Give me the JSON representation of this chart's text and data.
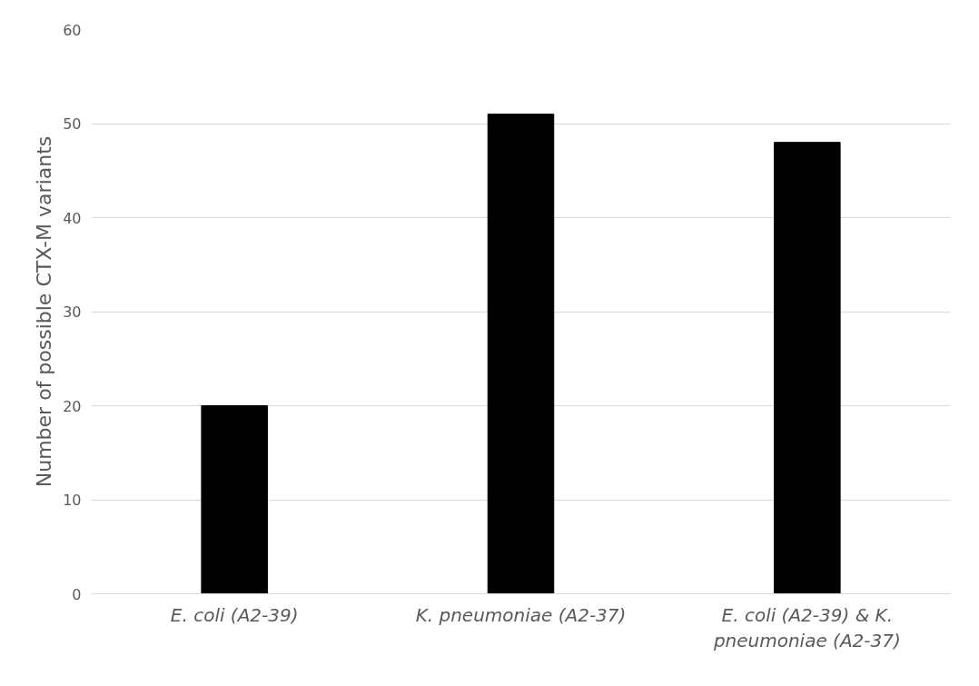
{
  "chart_data": {
    "type": "bar",
    "ylabel": "Number of possible CTX-M variants",
    "categories": [
      "E. coli (A2-39)",
      "K. pneumoniae (A2-37)",
      "E. coli (A2-39) & K. pneumoniae (A2-37)"
    ],
    "values": [
      20,
      51,
      48
    ],
    "color": "#000000",
    "ylim": [
      0,
      60
    ],
    "yticks": [
      0,
      10,
      20,
      30,
      40,
      50,
      60
    ],
    "grid": "y"
  }
}
